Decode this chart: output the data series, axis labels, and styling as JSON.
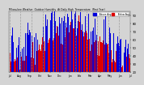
{
  "background_color": "#d4d4d4",
  "plot_bg_color": "#d4d4d4",
  "bar_color_above": "#0000dd",
  "bar_color_below": "#dd0000",
  "ylim_low": 20,
  "ylim_high": 95,
  "ytick_vals": [
    20,
    30,
    40,
    50,
    60,
    70,
    80,
    90
  ],
  "ytick_labels": [
    "20",
    "30",
    "40",
    "50",
    "60",
    "70",
    "80",
    "90"
  ],
  "n_bars": 365,
  "seed": 42,
  "mean_humidity": 62,
  "seasonal_amplitude": 18,
  "noise_scale": 14,
  "avg_noise_scale": 4,
  "grid_color": "#888888",
  "n_gridlines": 11,
  "month_labels": [
    "Jul",
    "Aug",
    "Sep",
    "Oct",
    "Nov",
    "Dec",
    "Jan",
    "Feb",
    "Mar",
    "Apr",
    "May",
    "Jun",
    "Jul"
  ],
  "legend_blue_label": "  Above Avg",
  "legend_red_label": "  Below Avg"
}
